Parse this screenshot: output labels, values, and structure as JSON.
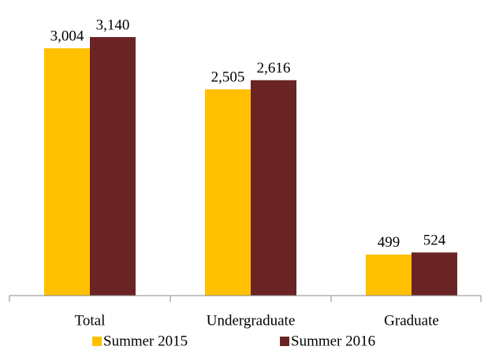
{
  "chart_data": {
    "type": "bar",
    "categories": [
      "Total",
      "Undergraduate",
      "Graduate"
    ],
    "series": [
      {
        "name": "Summer 2015",
        "color": "#FFC000",
        "values": [
          3004,
          2505,
          499
        ],
        "value_labels": [
          "3,004",
          "2,505",
          "499"
        ]
      },
      {
        "name": "Summer 2016",
        "color": "#6B2424",
        "values": [
          3140,
          2616,
          524
        ],
        "value_labels": [
          "3,140",
          "2,616",
          "524"
        ]
      }
    ],
    "legend": "bottom"
  }
}
